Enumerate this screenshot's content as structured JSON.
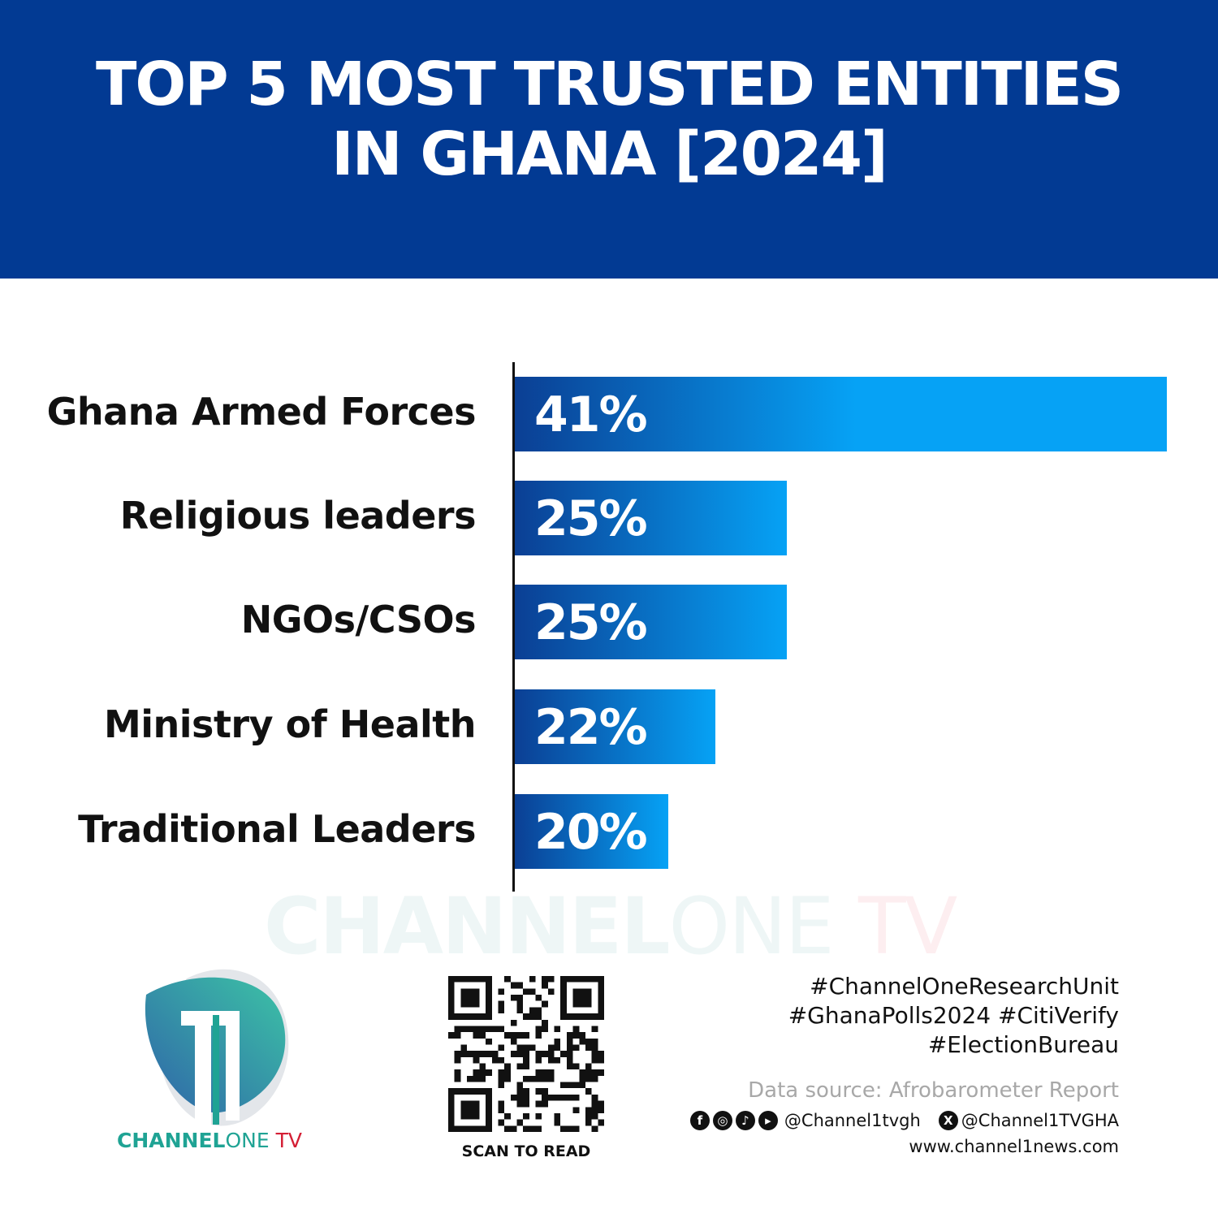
{
  "header": {
    "title_line1": "TOP 5 MOST TRUSTED ENTITIES",
    "title_line2": "IN GHANA [2024]"
  },
  "chart_data": {
    "type": "bar",
    "orientation": "horizontal",
    "title": "TOP 5 MOST TRUSTED ENTITIES IN GHANA [2024]",
    "categories": [
      "Ghana Armed Forces",
      "Religious leaders",
      "NGOs/CSOs",
      "Ministry of Health",
      "Traditional Leaders"
    ],
    "values": [
      41,
      25,
      25,
      22,
      20
    ],
    "value_labels": [
      "41%",
      "25%",
      "25%",
      "22%",
      "20%"
    ],
    "unit": "%",
    "grid": false,
    "colors": {
      "bar_start": "#0b3f94",
      "bar_end": "#06a2f5"
    }
  },
  "watermark": {
    "brand_bold": "CHANNEL",
    "brand_light": "ONE",
    "brand_tv": "TV"
  },
  "logo": {
    "brand_bold": "CHANNEL",
    "brand_light": "ONE",
    "brand_tv": "TV"
  },
  "qr": {
    "caption": "SCAN TO READ"
  },
  "footer": {
    "hashtags": [
      "#ChannelOneResearchUnit",
      "#GhanaPolls2024 #CitiVerify",
      "#ElectionBureau"
    ],
    "source": "Data source: Afrobarometer Report",
    "social_handle": "@Channel1tvgh",
    "x_handle": "@Channel1TVGHA",
    "website": "www.channel1news.com",
    "social_icons": [
      "facebook-icon",
      "instagram-icon",
      "tiktok-icon",
      "youtube-icon",
      "x-icon"
    ]
  },
  "colors": {
    "header_bg": "#023a93",
    "brand_teal": "#1fa394",
    "brand_red": "#d41f35"
  }
}
